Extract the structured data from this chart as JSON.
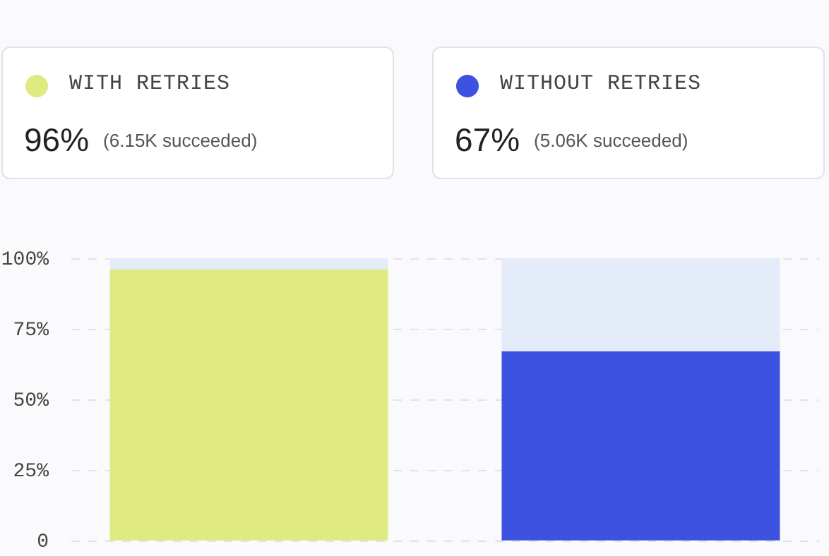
{
  "chart_data": {
    "type": "bar",
    "stacked": true,
    "categories": [
      null,
      null
    ],
    "series": [
      {
        "name": "WITH RETRIES",
        "color": "#dfeb80",
        "values": [
          96,
          null
        ]
      },
      {
        "name": "WITHOUT RETRIES",
        "color": "#3d52e0",
        "values": [
          null,
          67
        ]
      },
      {
        "color": "#e4ecfa",
        "values": [
          4,
          33
        ]
      }
    ],
    "annotations": [
      "96%",
      "(6.15K succeeded)",
      "67%",
      "(5.06K succeeded)"
    ],
    "ylim": [
      0,
      100
    ],
    "yticks": [
      0,
      {
        "value": 25,
        "label": "25%"
      },
      {
        "value": 50,
        "label": "50%"
      },
      {
        "value": 75,
        "label": "75%"
      },
      {
        "value": 100,
        "label": "100%"
      }
    ],
    "grid": "y",
    "legend": "top",
    "tick_labels": "y"
  }
}
